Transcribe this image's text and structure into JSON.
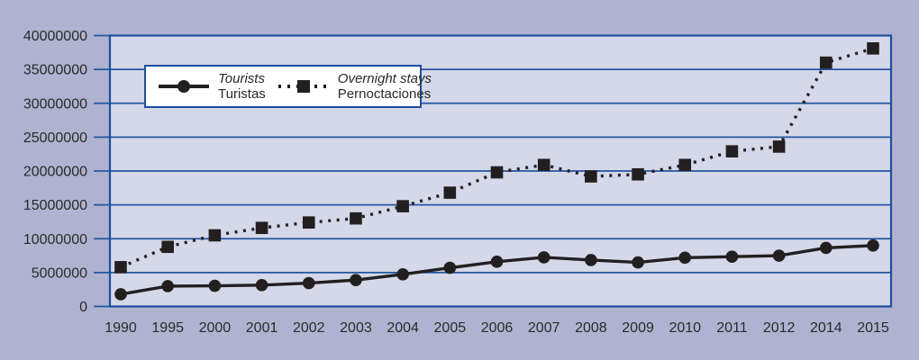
{
  "colors": {
    "page_bg": "#afb3d0",
    "plot_bg": "#d5d8e8",
    "grid": "#2456a4",
    "frame": "#1d4f9e",
    "series": "#221f20",
    "text": "#2a2a2a",
    "legend_bg": "#ffffff"
  },
  "legend": {
    "items": [
      {
        "name_en": "Tourists",
        "name_es": "Turistas",
        "marker": "circle",
        "line_style": "solid"
      },
      {
        "name_en": "Overnight stays",
        "name_es": "Pernoctaciones",
        "marker": "square",
        "line_style": "dotted"
      }
    ]
  },
  "chart_data": {
    "type": "line",
    "title": "",
    "xlabel": "",
    "ylabel": "",
    "categories": [
      "1990",
      "1995",
      "2000",
      "2001",
      "2002",
      "2003",
      "2004",
      "2005",
      "2006",
      "2007",
      "2008",
      "2009",
      "2010",
      "2011",
      "2012",
      "2014",
      "2015"
    ],
    "series": [
      {
        "name": "Tourists / Turistas",
        "marker": "circle",
        "line_style": "solid",
        "values": [
          1800000,
          3000000,
          3050000,
          3150000,
          3450000,
          3900000,
          4750000,
          5700000,
          6600000,
          7250000,
          6850000,
          6500000,
          7200000,
          7350000,
          7500000,
          8650000,
          9000000
        ]
      },
      {
        "name": "Overnight stays / Pernoctaciones",
        "marker": "square",
        "line_style": "dotted",
        "values": [
          5800000,
          8800000,
          10500000,
          11600000,
          12400000,
          13000000,
          14800000,
          16800000,
          19800000,
          20900000,
          19200000,
          19500000,
          20900000,
          22900000,
          23600000,
          36000000,
          38100000
        ]
      }
    ],
    "ylim": [
      0,
      40000000
    ],
    "y_tick_step": 5000000,
    "y_tick_labels": [
      "0",
      "5000000",
      "10000000",
      "15000000",
      "20000000",
      "25000000",
      "30000000",
      "35000000",
      "40000000"
    ],
    "grid": true,
    "legend_position": "upper-left-inside"
  }
}
